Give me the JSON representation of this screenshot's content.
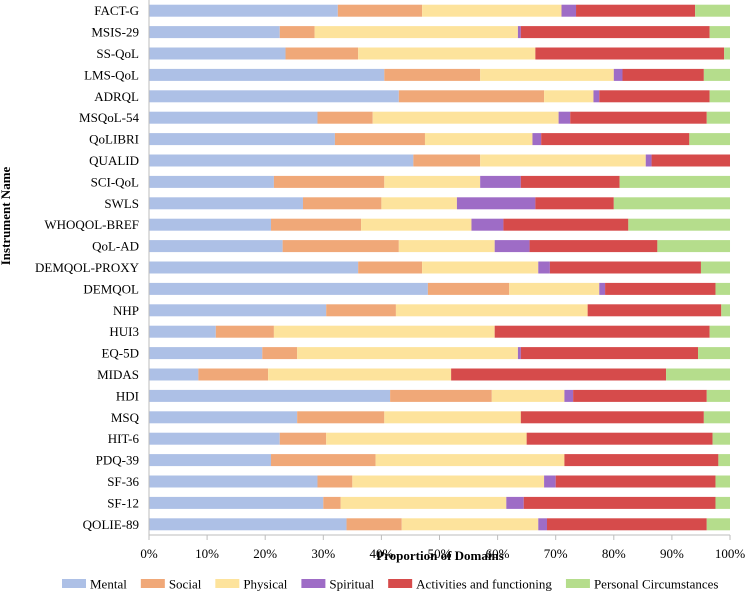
{
  "chart_data": {
    "type": "bar",
    "orientation": "horizontal",
    "stacked": true,
    "normalized": true,
    "xlabel": "Proportion of Domains",
    "ylabel": "Instrument Name",
    "xlim": [
      0,
      100
    ],
    "xticks": [
      "0%",
      "10%",
      "20%",
      "30%",
      "40%",
      "50%",
      "60%",
      "70%",
      "80%",
      "90%",
      "100%"
    ],
    "grid": false,
    "legend_position": "bottom",
    "categories": [
      "FACT-G",
      "MSIS-29",
      "SS-QoL",
      "LMS-QoL",
      "ADRQL",
      "MSQoL-54",
      "QoLIBRI",
      "QUALID",
      "SCI-QoL",
      "SWLS",
      "WHOQOL-BREF",
      "QoL-AD",
      "DEMQOL-PROXY",
      "DEMQOL",
      "NHP",
      "HUI3",
      "EQ-5D",
      "MIDAS",
      "HDI",
      "MSQ",
      "HIT-6",
      "PDQ-39",
      "SF-36",
      "SF-12",
      "QOLIE-89"
    ],
    "series": [
      {
        "name": "Mental",
        "color": "#adc0e6",
        "values": [
          32.5,
          22.5,
          23.5,
          40.5,
          43,
          29,
          32,
          45.5,
          21.5,
          26.5,
          21,
          23,
          36,
          48,
          30.5,
          11.5,
          19.5,
          8.5,
          41.5,
          25.5,
          22.5,
          21,
          29,
          30,
          34
        ]
      },
      {
        "name": "Social",
        "color": "#f0a878",
        "values": [
          14.5,
          6,
          12.5,
          16.5,
          25,
          9.5,
          15.5,
          11.5,
          19,
          13.5,
          15.5,
          20,
          11,
          14,
          12,
          10,
          6,
          12,
          17.5,
          15,
          8,
          18,
          6,
          3,
          9.5
        ]
      },
      {
        "name": "Physical",
        "color": "#fde39c",
        "values": [
          24,
          35,
          30.5,
          23,
          8.5,
          32,
          18.5,
          28.5,
          16.5,
          13,
          19,
          16.5,
          20,
          15.5,
          33,
          38,
          38,
          31.5,
          12.5,
          23.5,
          34.5,
          32.5,
          33,
          28.5,
          23.5
        ]
      },
      {
        "name": "Spiritual",
        "color": "#9e6cc6",
        "values": [
          2.5,
          0.5,
          0,
          1.5,
          1,
          2,
          1.5,
          1,
          7,
          13.5,
          5.5,
          6,
          2,
          1,
          0,
          0,
          0.5,
          0,
          1.5,
          0,
          0,
          0,
          2,
          3,
          1.5
        ]
      },
      {
        "name": "Activities and functioning",
        "color": "#d64b4b",
        "values": [
          20.5,
          32.5,
          32.5,
          14,
          19,
          23.5,
          25.5,
          13.5,
          17,
          13.5,
          21.5,
          22,
          26,
          19,
          23,
          37,
          30.5,
          37,
          23,
          31.5,
          32,
          26.5,
          27.5,
          33,
          27.5
        ]
      },
      {
        "name": "Personal Circumstances",
        "color": "#b5dd8c",
        "values": [
          6,
          3.5,
          1,
          4.5,
          3.5,
          4,
          7,
          0,
          19,
          20,
          17.5,
          12.5,
          5,
          2.5,
          1.5,
          3.5,
          5.5,
          11,
          4,
          4.5,
          3,
          2,
          2.5,
          2.5,
          4
        ]
      }
    ]
  }
}
